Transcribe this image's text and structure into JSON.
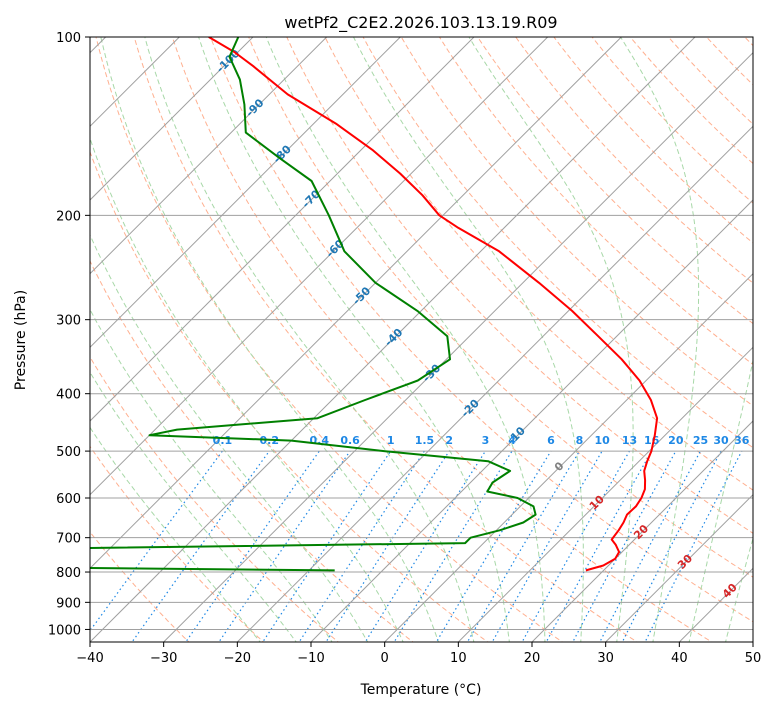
{
  "chart_data": {
    "type": "line",
    "title": "wetPf2_C2E2.2026.103.13.19.R09",
    "xlabel": "Temperature (°C)",
    "ylabel": "Pressure (hPa)",
    "xlim": [
      -40,
      50
    ],
    "ylim": [
      1050,
      100
    ],
    "y_scale": "log",
    "x_ticks": [
      "−40",
      "−30",
      "−20",
      "−10",
      "0",
      "10",
      "20",
      "30",
      "40",
      "50"
    ],
    "x_tick_values": [
      -40,
      -30,
      -20,
      -10,
      0,
      10,
      20,
      30,
      40,
      50
    ],
    "y_ticks": [
      "100",
      "200",
      "300",
      "400",
      "500",
      "600",
      "700",
      "800",
      "900",
      "1000"
    ],
    "y_tick_values": [
      100,
      200,
      300,
      400,
      500,
      600,
      700,
      800,
      900,
      1000
    ],
    "skew_degrees": 45,
    "colors": {
      "temperature": "#ff0000",
      "dewpoint": "#008000",
      "isotherm": "#a0a0a0",
      "dry_adiabat": "#ffb090",
      "moist_adiabat": "#a8d8a8",
      "mixing_ratio": "#1e88e5",
      "frame": "#000000"
    },
    "series": [
      {
        "name": "Temperature",
        "color": "#ff0000",
        "points": [
          [
            795,
            17.6
          ],
          [
            780,
            19.3
          ],
          [
            760,
            20.0
          ],
          [
            740,
            19.6
          ],
          [
            720,
            18.2
          ],
          [
            705,
            16.9
          ],
          [
            680,
            16.6
          ],
          [
            660,
            16.2
          ],
          [
            640,
            15.6
          ],
          [
            620,
            15.7
          ],
          [
            600,
            15.3
          ],
          [
            580,
            14.6
          ],
          [
            560,
            13.4
          ],
          [
            540,
            12.0
          ],
          [
            520,
            11.1
          ],
          [
            500,
            10.3
          ],
          [
            470,
            8.6
          ],
          [
            440,
            6.6
          ],
          [
            410,
            3.3
          ],
          [
            380,
            -0.9
          ],
          [
            350,
            -6.2
          ],
          [
            320,
            -12.5
          ],
          [
            290,
            -19.5
          ],
          [
            260,
            -27.8
          ],
          [
            230,
            -37.5
          ],
          [
            210,
            -46.2
          ],
          [
            200,
            -50.5
          ],
          [
            185,
            -55.5
          ],
          [
            170,
            -61.5
          ],
          [
            155,
            -68.5
          ],
          [
            140,
            -77.0
          ],
          [
            125,
            -87.5
          ],
          [
            112,
            -96.0
          ],
          [
            106,
            -100.5
          ],
          [
            100,
            -106.0
          ]
        ]
      },
      {
        "name": "Dewpoint",
        "color": "#008000",
        "points": [
          [
            795,
            -16.5
          ],
          [
            785,
            -60.5
          ],
          [
            730,
            -58.0
          ],
          [
            715,
            -2.5
          ],
          [
            700,
            -2.5
          ],
          [
            680,
            0.5
          ],
          [
            660,
            2.6
          ],
          [
            640,
            3.2
          ],
          [
            620,
            1.8
          ],
          [
            600,
            -1.5
          ],
          [
            585,
            -6.5
          ],
          [
            565,
            -7.0
          ],
          [
            540,
            -6.2
          ],
          [
            520,
            -10.5
          ],
          [
            500,
            -26.0
          ],
          [
            480,
            -40.0
          ],
          [
            470,
            -60.0
          ],
          [
            460,
            -57.0
          ],
          [
            440,
            -39.5
          ],
          [
            410,
            -35.5
          ],
          [
            380,
            -31.0
          ],
          [
            350,
            -29.5
          ],
          [
            320,
            -33.0
          ],
          [
            290,
            -40.5
          ],
          [
            260,
            -50.0
          ],
          [
            230,
            -58.5
          ],
          [
            200,
            -65.5
          ],
          [
            175,
            -72.5
          ],
          [
            160,
            -80.0
          ],
          [
            145,
            -88.0
          ],
          [
            130,
            -92.0
          ],
          [
            118,
            -96.0
          ],
          [
            108,
            -100.5
          ],
          [
            100,
            -102.0
          ]
        ]
      }
    ],
    "annotations": {
      "isotherm_labels": [
        {
          "text": "-100",
          "temp": -100,
          "pressure": 110
        },
        {
          "text": "-90",
          "temp": -90,
          "pressure": 132
        },
        {
          "text": "-80",
          "temp": -80,
          "pressure": 158
        },
        {
          "text": "-70",
          "temp": -70,
          "pressure": 188
        },
        {
          "text": "-60",
          "temp": -60,
          "pressure": 228
        },
        {
          "text": "-50",
          "temp": -50,
          "pressure": 274
        },
        {
          "text": "-40",
          "temp": -40,
          "pressure": 322
        },
        {
          "text": "-30",
          "temp": -30,
          "pressure": 370
        },
        {
          "text": "-20",
          "temp": -20,
          "pressure": 424
        },
        {
          "text": "-10",
          "temp": -10,
          "pressure": 472
        },
        {
          "text": "0",
          "temp": 0,
          "pressure": 532
        },
        {
          "text": "10",
          "temp": 10,
          "pressure": 612
        },
        {
          "text": "20",
          "temp": 20,
          "pressure": 686
        },
        {
          "text": "30",
          "temp": 30,
          "pressure": 770
        },
        {
          "text": "40",
          "temp": 40,
          "pressure": 862
        }
      ],
      "mixing_ratio_labels": [
        "0.1",
        "0.2",
        "0.4",
        "0.6",
        "1",
        "1.5",
        "2",
        "3",
        "4",
        "6",
        "8",
        "10",
        "13",
        "16",
        "20",
        "25",
        "30",
        "36"
      ],
      "mixing_ratio_values": [
        0.1,
        0.2,
        0.4,
        0.6,
        1,
        1.5,
        2,
        3,
        4,
        6,
        8,
        10,
        13,
        16,
        20,
        25,
        30,
        36
      ],
      "mixing_ratio_label_pressure": 500
    }
  }
}
